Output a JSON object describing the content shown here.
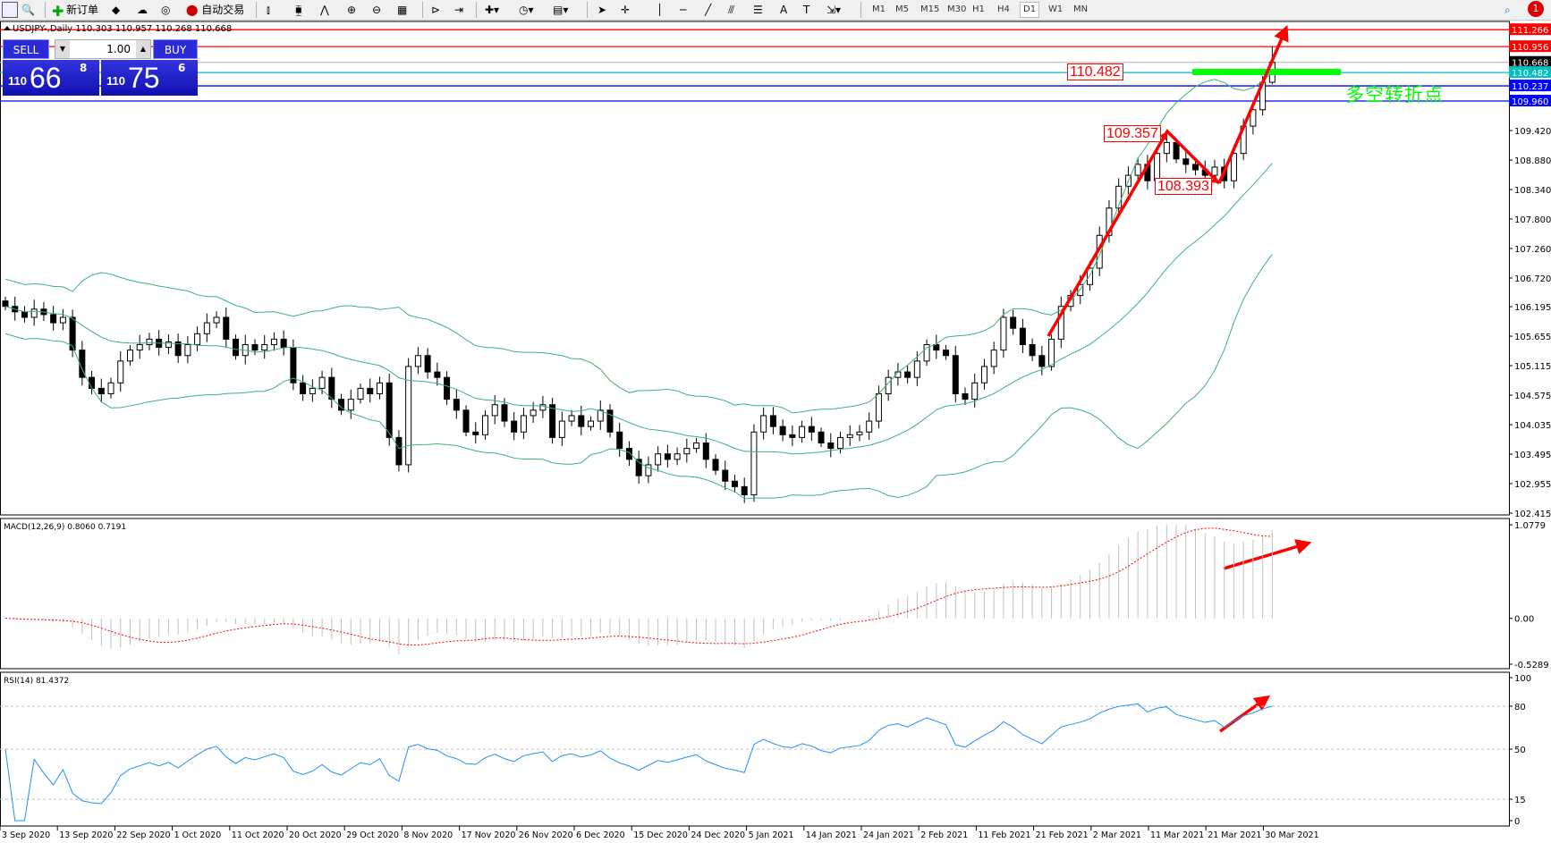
{
  "toolbar": {
    "new_order_label": "新订单",
    "auto_trading_label": "自动交易",
    "timeframes": [
      "M1",
      "M5",
      "M15",
      "M30",
      "H1",
      "H4",
      "D1",
      "W1",
      "MN"
    ],
    "active_timeframe": "D1",
    "notification_count": "1"
  },
  "chart": {
    "title": "USDJPY-,Daily  110.303 110.957 110.268 110.668",
    "annotation_text": "多空转折点",
    "price_labels": [
      "110.482",
      "109.357",
      "108.393"
    ],
    "colors": {
      "bands": "#3cb371",
      "annotation": "#ff0000",
      "green_bar": "#00ff00",
      "rsi": "#1e90ff",
      "macd_signal": "#ff0000",
      "macd_hist": "#c0c0c0"
    }
  },
  "trade_panel": {
    "sell_label": "SELL",
    "buy_label": "BUY",
    "lots": "1.00",
    "sell_prefix": "110",
    "sell_big": "66",
    "sell_sup": "8",
    "buy_prefix": "110",
    "buy_big": "75",
    "buy_sup": "6"
  },
  "macd": {
    "label": "MACD(12,26,9) 0.8060 0.7191",
    "axis": [
      "1.0779",
      "0.00",
      "-0.5289"
    ]
  },
  "rsi": {
    "label": "RSI(14) 81.4372",
    "axis": [
      "100",
      "80",
      "50",
      "15",
      "0"
    ]
  },
  "chart_data": {
    "type": "candlestick",
    "symbol": "USDJPY-",
    "timeframe": "Daily",
    "last_bar": {
      "open": 110.303,
      "high": 110.957,
      "low": 110.268,
      "close": 110.668
    },
    "price_axis": [
      "109.420",
      "108.880",
      "108.340",
      "107.800",
      "107.260",
      "106.720",
      "106.195",
      "105.655",
      "105.115",
      "104.575",
      "104.035",
      "103.495",
      "102.955",
      "102.415"
    ],
    "ylim": [
      102.415,
      111.4
    ],
    "hlines": [
      {
        "price": "111.266",
        "color": "#ff0000"
      },
      {
        "price": "110.956",
        "color": "#ff0000"
      },
      {
        "price": "110.668",
        "color": "#000000"
      },
      {
        "price": "110.482",
        "color": "#00c0c0"
      },
      {
        "price": "110.237",
        "color": "#0000ff"
      },
      {
        "price": "109.960",
        "color": "#0000ff"
      }
    ],
    "dates": [
      "3 Sep 2020",
      "13 Sep 2020",
      "22 Sep 2020",
      "1 Oct 2020",
      "11 Oct 2020",
      "20 Oct 2020",
      "29 Oct 2020",
      "8 Nov 2020",
      "17 Nov 2020",
      "26 Nov 2020",
      "6 Dec 2020",
      "15 Dec 2020",
      "24 Dec 2020",
      "5 Jan 2021",
      "14 Jan 2021",
      "24 Jan 2021",
      "2 Feb 2021",
      "11 Feb 2021",
      "21 Feb 2021",
      "2 Mar 2021",
      "11 Mar 2021",
      "21 Mar 2021",
      "30 Mar 2021"
    ],
    "close": [
      106.2,
      106.1,
      106.0,
      106.15,
      106.05,
      105.9,
      106.0,
      105.4,
      104.9,
      104.7,
      104.6,
      104.8,
      105.2,
      105.4,
      105.5,
      105.6,
      105.45,
      105.55,
      105.3,
      105.5,
      105.7,
      105.9,
      106.0,
      105.6,
      105.3,
      105.5,
      105.4,
      105.5,
      105.6,
      105.45,
      104.8,
      104.6,
      104.7,
      104.9,
      104.5,
      104.3,
      104.5,
      104.7,
      104.6,
      104.8,
      103.8,
      103.3,
      105.1,
      105.3,
      105.0,
      104.9,
      104.5,
      104.3,
      103.9,
      103.85,
      104.2,
      104.4,
      104.1,
      103.9,
      104.2,
      104.3,
      104.4,
      103.8,
      104.1,
      104.2,
      104.0,
      104.1,
      104.3,
      103.9,
      103.6,
      103.4,
      103.1,
      103.3,
      103.5,
      103.4,
      103.5,
      103.6,
      103.7,
      103.4,
      103.2,
      103.0,
      102.9,
      102.75,
      103.9,
      104.2,
      104.0,
      103.85,
      103.8,
      104.0,
      103.9,
      103.7,
      103.6,
      103.8,
      103.85,
      103.9,
      104.1,
      104.6,
      104.9,
      105.0,
      104.9,
      105.2,
      105.5,
      105.4,
      105.3,
      104.6,
      104.5,
      104.8,
      105.1,
      105.4,
      106.0,
      105.8,
      105.5,
      105.3,
      105.1,
      105.6,
      106.2,
      106.4,
      106.6,
      106.9,
      107.5,
      108.0,
      108.4,
      108.6,
      108.8,
      108.5,
      109.0,
      109.2,
      108.9,
      108.8,
      108.7,
      108.6,
      108.75,
      108.5,
      109.0,
      109.5,
      109.8,
      110.303,
      110.668
    ],
    "indicators": [
      "Bollinger Bands(20,2)",
      "MACD(12,26,9)",
      "RSI(14)"
    ],
    "rsi_levels": [
      80,
      50,
      15
    ],
    "macd_ylim": [
      -0.5289,
      1.0779
    ],
    "rsi_ylim": [
      0,
      100
    ]
  }
}
